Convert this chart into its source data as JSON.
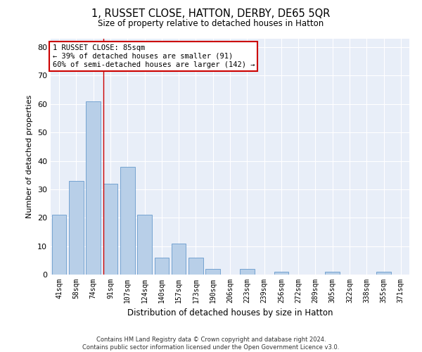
{
  "title": "1, RUSSET CLOSE, HATTON, DERBY, DE65 5QR",
  "subtitle": "Size of property relative to detached houses in Hatton",
  "xlabel": "Distribution of detached houses by size in Hatton",
  "ylabel": "Number of detached properties",
  "categories": [
    "41sqm",
    "58sqm",
    "74sqm",
    "91sqm",
    "107sqm",
    "124sqm",
    "140sqm",
    "157sqm",
    "173sqm",
    "190sqm",
    "206sqm",
    "223sqm",
    "239sqm",
    "256sqm",
    "272sqm",
    "289sqm",
    "305sqm",
    "322sqm",
    "338sqm",
    "355sqm",
    "371sqm"
  ],
  "values": [
    21,
    33,
    61,
    32,
    38,
    21,
    6,
    11,
    6,
    2,
    0,
    2,
    0,
    1,
    0,
    0,
    1,
    0,
    0,
    1,
    0
  ],
  "bar_color": "#b8cfe8",
  "bar_edge_color": "#6699cc",
  "background_color": "#e8eef8",
  "grid_color": "#ffffff",
  "property_label": "1 RUSSET CLOSE: 85sqm",
  "annotation_line1": "← 39% of detached houses are smaller (91)",
  "annotation_line2": "60% of semi-detached houses are larger (142) →",
  "vline_bar_index": 3,
  "vline_color": "#cc0000",
  "annotation_box_color": "#cc0000",
  "ylim": [
    0,
    83
  ],
  "yticks": [
    0,
    10,
    20,
    30,
    40,
    50,
    60,
    70,
    80
  ],
  "footnote1": "Contains HM Land Registry data © Crown copyright and database right 2024.",
  "footnote2": "Contains public sector information licensed under the Open Government Licence v3.0.",
  "fig_facecolor": "#ffffff"
}
